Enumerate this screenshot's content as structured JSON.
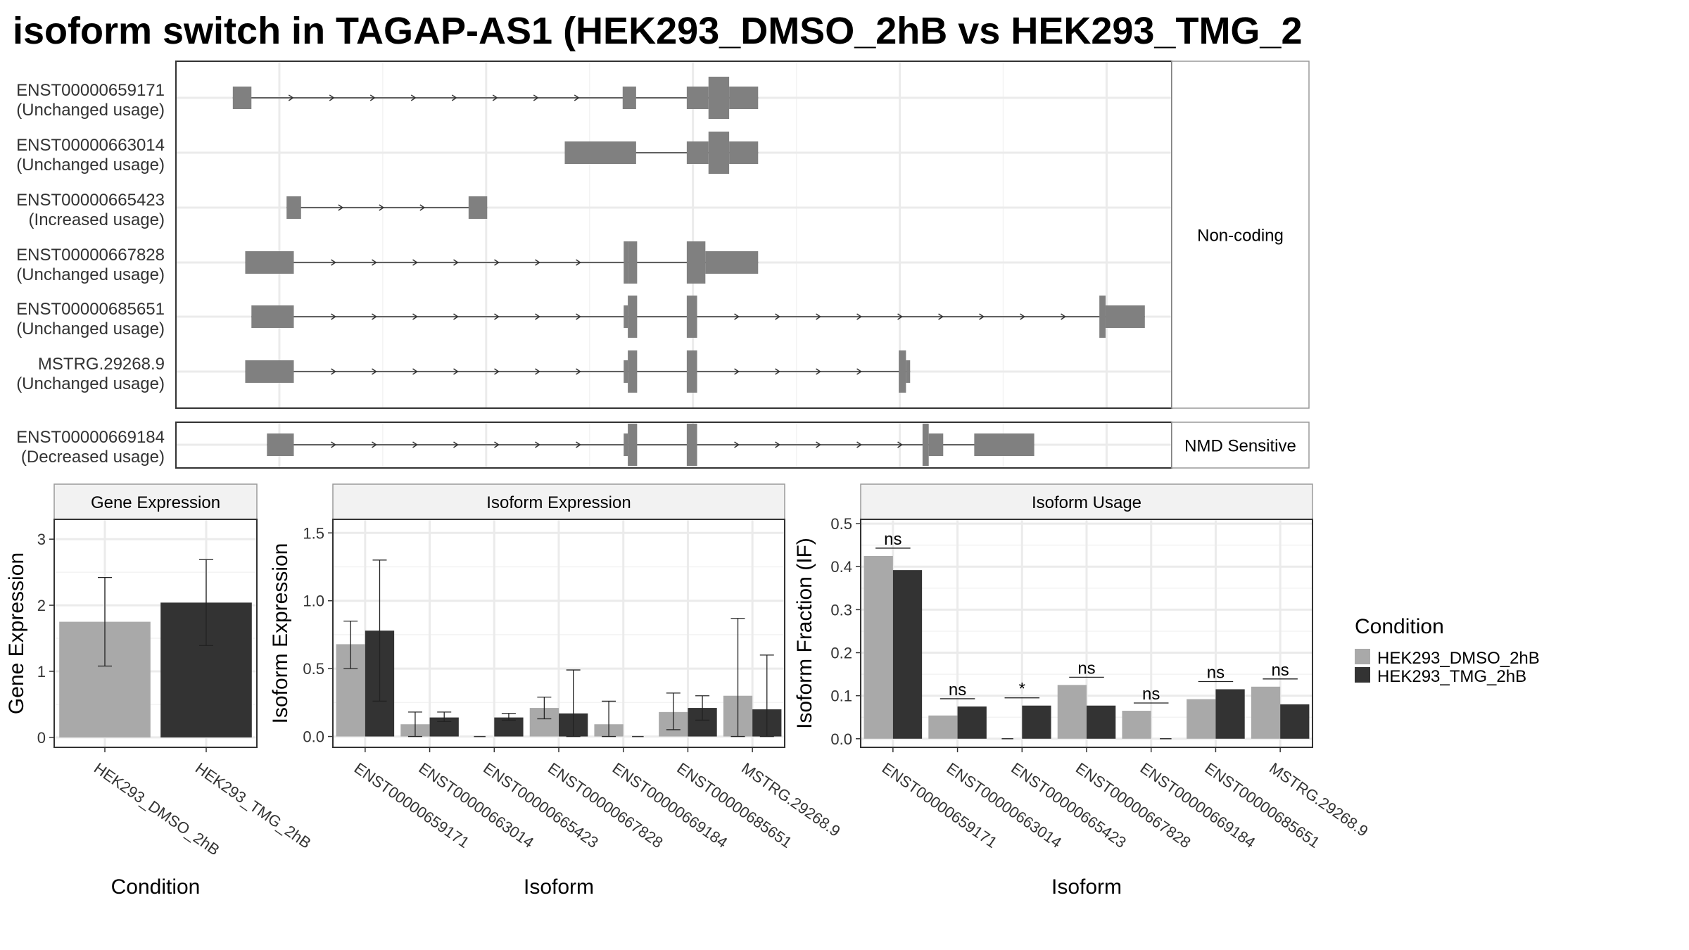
{
  "title": "isoform switch in TAGAP-AS1 (HEK293_DMSO_2hB vs HEK293_TMG_2",
  "colors": {
    "dmso": "#a9a9a9",
    "tmg": "#333333",
    "exon": "#808080"
  },
  "structure": {
    "facets": [
      "Non-coding",
      "NMD Sensitive"
    ],
    "transcripts": [
      {
        "id": "ENST00000659171",
        "usage": "(Unchanged usage)",
        "facet": 0,
        "exons": [
          [
            215.5,
            217.3,
            "thin"
          ],
          [
            253.2,
            254.5,
            "thin"
          ],
          [
            259.4,
            261.5,
            "thin"
          ],
          [
            261.5,
            263.5,
            "thick"
          ],
          [
            263.5,
            266.3,
            "thin"
          ]
        ]
      },
      {
        "id": "ENST00000663014",
        "usage": "(Unchanged usage)",
        "facet": 0,
        "exons": [
          [
            247.6,
            254.5,
            "thin"
          ],
          [
            259.4,
            261.5,
            "thin"
          ],
          [
            261.5,
            263.5,
            "thick"
          ],
          [
            263.5,
            266.3,
            "thin"
          ]
        ]
      },
      {
        "id": "ENST00000665423",
        "usage": "(Increased usage)",
        "facet": 0,
        "exons": [
          [
            220.7,
            222.1,
            "thin"
          ],
          [
            238.3,
            240.1,
            "thin"
          ]
        ]
      },
      {
        "id": "ENST00000667828",
        "usage": "(Unchanged usage)",
        "facet": 0,
        "exons": [
          [
            216.7,
            221.4,
            "thin"
          ],
          [
            253.3,
            253.7,
            "thick"
          ],
          [
            253.7,
            254.6,
            "thick"
          ],
          [
            259.4,
            261.2,
            "thick"
          ],
          [
            261.2,
            266.3,
            "thin"
          ]
        ]
      },
      {
        "id": "ENST00000685651",
        "usage": "(Unchanged usage)",
        "facet": 0,
        "exons": [
          [
            217.3,
            221.4,
            "thin"
          ],
          [
            253.3,
            253.7,
            "thin"
          ],
          [
            253.7,
            254.6,
            "thick"
          ],
          [
            259.4,
            260.4,
            "thick"
          ],
          [
            299.3,
            299.9,
            "thick"
          ],
          [
            299.9,
            303.7,
            "thin"
          ]
        ]
      },
      {
        "id": "MSTRG.29268.9",
        "usage": "(Unchanged usage)",
        "facet": 0,
        "exons": [
          [
            216.7,
            221.4,
            "thin"
          ],
          [
            253.3,
            253.7,
            "thin"
          ],
          [
            253.7,
            254.6,
            "thick"
          ],
          [
            259.4,
            260.4,
            "thick"
          ],
          [
            279.9,
            280.6,
            "thick"
          ],
          [
            280.6,
            281.0,
            "thin"
          ]
        ]
      },
      {
        "id": "ENST00000669184",
        "usage": "(Decreased usage)",
        "facet": 1,
        "exons": [
          [
            218.8,
            221.4,
            "thin"
          ],
          [
            253.3,
            253.7,
            "thin"
          ],
          [
            253.7,
            254.6,
            "thick"
          ],
          [
            259.4,
            260.4,
            "thick"
          ],
          [
            282.2,
            282.8,
            "thick"
          ],
          [
            282.8,
            284.2,
            "thin"
          ],
          [
            287.2,
            293.0,
            "thin"
          ]
        ]
      }
    ]
  },
  "chart_data": [
    {
      "type": "bar",
      "title": "Gene Expression",
      "xlabel": "Condition",
      "ylabel": "Gene Expression",
      "ylim": [
        -0.15,
        3.3
      ],
      "yticks": [
        "0",
        "1",
        "2",
        "3"
      ],
      "categories": [
        "HEK293_DMSO_2hB",
        "HEK293_TMG_2hB"
      ],
      "values": [
        1.75,
        2.04
      ],
      "error_low": [
        1.08,
        1.39
      ],
      "error_high": [
        2.42,
        2.69
      ]
    },
    {
      "type": "bar",
      "title": "Isoform Expression",
      "xlabel": "Isoform",
      "ylabel": "Isoform Expression",
      "ylim": [
        -0.08,
        1.6
      ],
      "yticks": [
        "0.0",
        "0.5",
        "1.0",
        "1.5"
      ],
      "categories": [
        "ENST00000659171",
        "ENST00000663014",
        "ENST00000665423",
        "ENST00000667828",
        "ENST00000669184",
        "ENST00000685651",
        "MSTRG.29268.9"
      ],
      "series": [
        {
          "name": "HEK293_DMSO_2hB",
          "values": [
            0.68,
            0.09,
            0.0,
            0.21,
            0.09,
            0.18,
            0.3
          ],
          "error_low": [
            0.5,
            0.0,
            0.0,
            0.13,
            0.0,
            0.05,
            0.0
          ],
          "error_high": [
            0.85,
            0.18,
            0.0,
            0.29,
            0.26,
            0.32,
            0.87
          ]
        },
        {
          "name": "HEK293_TMG_2hB",
          "values": [
            0.78,
            0.14,
            0.14,
            0.17,
            0.0,
            0.21,
            0.2
          ],
          "error_low": [
            0.26,
            0.11,
            0.12,
            0.0,
            0.0,
            0.12,
            0.0
          ],
          "error_high": [
            1.3,
            0.18,
            0.17,
            0.49,
            0.0,
            0.3,
            0.6
          ]
        }
      ]
    },
    {
      "type": "bar",
      "title": "Isoform Usage",
      "xlabel": "Isoform",
      "ylabel": "Isoform Fraction (IF)",
      "ylim": [
        -0.02,
        0.51
      ],
      "yticks": [
        "0.0",
        "0.1",
        "0.2",
        "0.3",
        "0.4",
        "0.5"
      ],
      "categories": [
        "ENST00000659171",
        "ENST00000663014",
        "ENST00000665423",
        "ENST00000667828",
        "ENST00000669184",
        "ENST00000685651",
        "MSTRG.29268.9"
      ],
      "series": [
        {
          "name": "HEK293_DMSO_2hB",
          "values": [
            0.425,
            0.054,
            0.0,
            0.125,
            0.065,
            0.092,
            0.121
          ]
        },
        {
          "name": "HEK293_TMG_2hB",
          "values": [
            0.392,
            0.075,
            0.077,
            0.077,
            0.0,
            0.115,
            0.08
          ]
        }
      ],
      "significance": [
        "ns",
        "ns",
        "*",
        "ns",
        "ns",
        "ns",
        "ns"
      ]
    }
  ],
  "legend": {
    "title": "Condition",
    "items": [
      "HEK293_DMSO_2hB",
      "HEK293_TMG_2hB"
    ]
  }
}
